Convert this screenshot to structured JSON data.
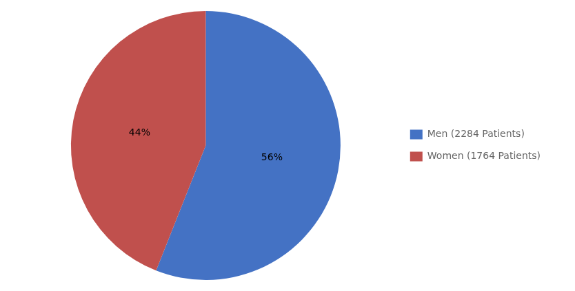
{
  "chart_data": {
    "type": "pie",
    "categories": [
      "Men (2284 Patients)",
      "Women (1764 Patients)"
    ],
    "values": [
      56,
      44
    ],
    "value_labels": [
      "56%",
      "44%"
    ],
    "data_labels": true,
    "colors": [
      "#4472C4",
      "#C0504D"
    ],
    "legend": "right"
  }
}
